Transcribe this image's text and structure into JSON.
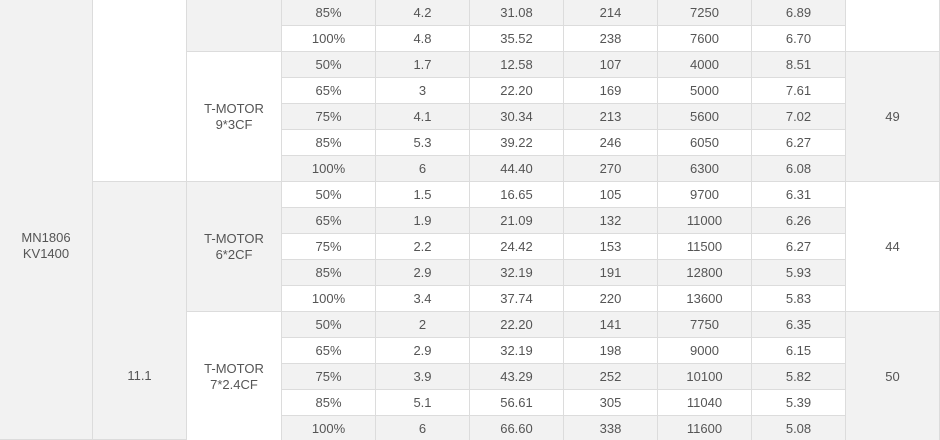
{
  "table": {
    "motor_lines": [
      "MN1806",
      "KV1400"
    ],
    "voltage": "11.1",
    "groups": [
      {
        "rows": [
          [
            "85%",
            "4.2",
            "31.08",
            "214",
            "7250",
            "6.89"
          ],
          [
            "100%",
            "4.8",
            "35.52",
            "238",
            "7600",
            "6.70"
          ]
        ]
      },
      {
        "prop_lines": [
          "T-MOTOR",
          "9*3CF"
        ],
        "temp": "49",
        "rows": [
          [
            "50%",
            "1.7",
            "12.58",
            "107",
            "4000",
            "8.51"
          ],
          [
            "65%",
            "3",
            "22.20",
            "169",
            "5000",
            "7.61"
          ],
          [
            "75%",
            "4.1",
            "30.34",
            "213",
            "5600",
            "7.02"
          ],
          [
            "85%",
            "5.3",
            "39.22",
            "246",
            "6050",
            "6.27"
          ],
          [
            "100%",
            "6",
            "44.40",
            "270",
            "6300",
            "6.08"
          ]
        ]
      },
      {
        "prop_lines": [
          "T-MOTOR",
          "6*2CF"
        ],
        "temp": "44",
        "rows": [
          [
            "50%",
            "1.5",
            "16.65",
            "105",
            "9700",
            "6.31"
          ],
          [
            "65%",
            "1.9",
            "21.09",
            "132",
            "11000",
            "6.26"
          ],
          [
            "75%",
            "2.2",
            "24.42",
            "153",
            "11500",
            "6.27"
          ],
          [
            "85%",
            "2.9",
            "32.19",
            "191",
            "12800",
            "5.93"
          ],
          [
            "100%",
            "3.4",
            "37.74",
            "220",
            "13600",
            "5.83"
          ]
        ]
      },
      {
        "prop_lines": [
          "T-MOTOR",
          "7*2.4CF"
        ],
        "temp": "50",
        "rows": [
          [
            "50%",
            "2",
            "22.20",
            "141",
            "7750",
            "6.35"
          ],
          [
            "65%",
            "2.9",
            "32.19",
            "198",
            "9000",
            "6.15"
          ],
          [
            "75%",
            "3.9",
            "43.29",
            "252",
            "10100",
            "5.82"
          ],
          [
            "85%",
            "5.1",
            "56.61",
            "305",
            "11040",
            "5.39"
          ],
          [
            "100%",
            "6",
            "66.60",
            "338",
            "11600",
            "5.08"
          ]
        ]
      }
    ]
  }
}
